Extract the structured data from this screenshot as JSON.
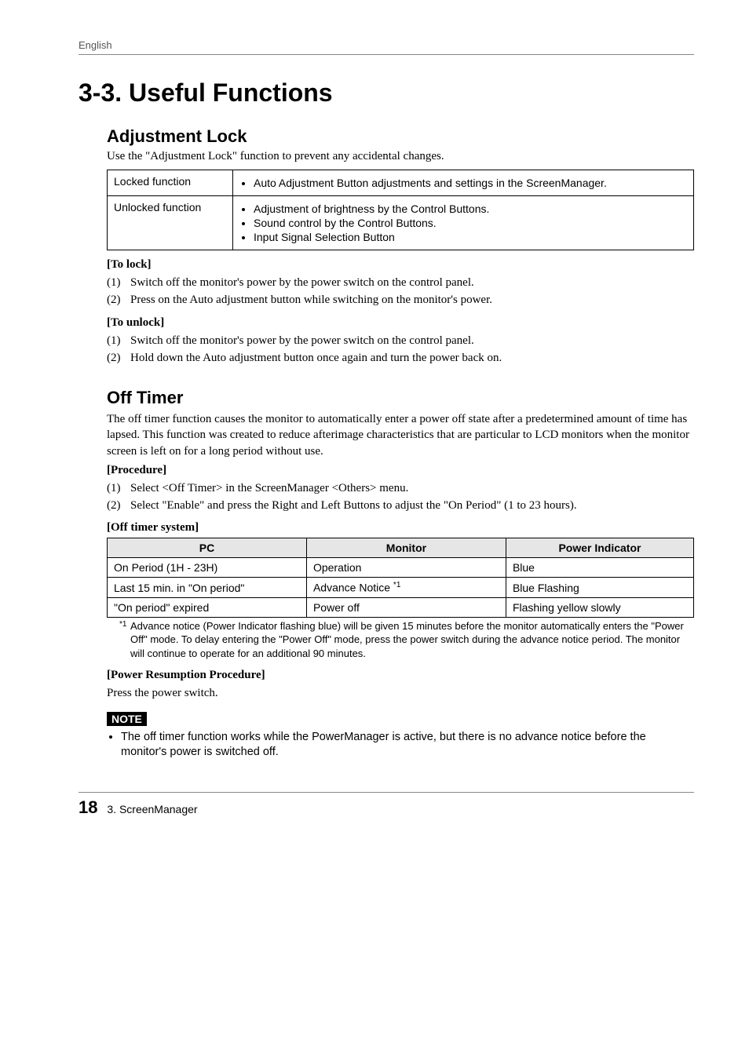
{
  "running_header": "English",
  "section_number_title": "3-3. Useful Functions",
  "adjustment_lock": {
    "heading": "Adjustment Lock",
    "intro": "Use the \"Adjustment Lock\" function to prevent any accidental changes.",
    "rows": [
      {
        "label": "Locked function",
        "items": [
          "Auto Adjustment Button adjustments and settings in the ScreenManager."
        ]
      },
      {
        "label": "Unlocked function",
        "items": [
          "Adjustment of brightness by the Control Buttons.",
          "Sound control by the Control Buttons.",
          "Input Signal Selection Button"
        ]
      }
    ],
    "to_lock_heading": " [To lock]",
    "to_lock_steps": [
      {
        "n": "(1)",
        "txt": "Switch off the monitor's power by the power switch on the control panel."
      },
      {
        "n": "(2)",
        "txt": "Press on the Auto adjustment button while switching on the monitor's power."
      }
    ],
    "to_unlock_heading": "[To unlock]",
    "to_unlock_steps": [
      {
        "n": "(1)",
        "txt": "Switch off the monitor's power by the power switch on the control panel."
      },
      {
        "n": "(2)",
        "txt": "Hold down the Auto adjustment button once again and turn the power back on."
      }
    ]
  },
  "off_timer": {
    "heading": "Off Timer",
    "intro": "The off timer function causes the monitor to automatically enter a power off state after a predetermined amount of time has lapsed. This function was created to reduce afterimage characteristics that are particular to LCD monitors when the monitor screen is left on for a long period without use.",
    "procedure_heading": "[Procedure]",
    "procedure_steps": [
      {
        "n": "(1)",
        "txt": "Select <Off Timer> in the ScreenManager <Others> menu."
      },
      {
        "n": "(2)",
        "txt": "Select \"Enable\" and press the Right and Left Buttons to adjust the \"On Period\" (1 to 23 hours)."
      }
    ],
    "system_heading": "[Off timer system]",
    "table": {
      "header_bg": "#e6e6e6",
      "headers": [
        "PC",
        "Monitor",
        "Power Indicator"
      ],
      "rows": [
        [
          "On Period (1H - 23H)",
          "Operation",
          "Blue"
        ],
        [
          "Last 15 min. in \"On period\"",
          "Advance Notice ",
          "Blue Flashing"
        ],
        [
          "\"On period\" expired",
          "Power off",
          "Flashing yellow slowly"
        ]
      ],
      "advance_notice_sup": "*1"
    },
    "footnote_marker": "*1",
    "footnote": "Advance notice (Power Indicator flashing blue) will be given 15 minutes before the monitor automatically enters the \"Power Off\" mode. To delay entering the \"Power Off\" mode, press the power switch during the advance notice period. The monitor will continue to operate for an additional 90 minutes.",
    "resume_heading": "[Power Resumption Procedure]",
    "resume_text": "Press the power switch.",
    "note_label": "NOTE",
    "note_text": "The off timer function works while the PowerManager is active, but there is no advance notice before the monitor's power is switched off."
  },
  "footer": {
    "page_number": "18",
    "chapter": "3. ScreenManager"
  },
  "colors": {
    "text": "#000000",
    "bg": "#ffffff",
    "rule": "#888888",
    "table_header_bg": "#e6e6e6",
    "note_bg": "#000000",
    "note_fg": "#ffffff",
    "running_header": "#555555"
  }
}
